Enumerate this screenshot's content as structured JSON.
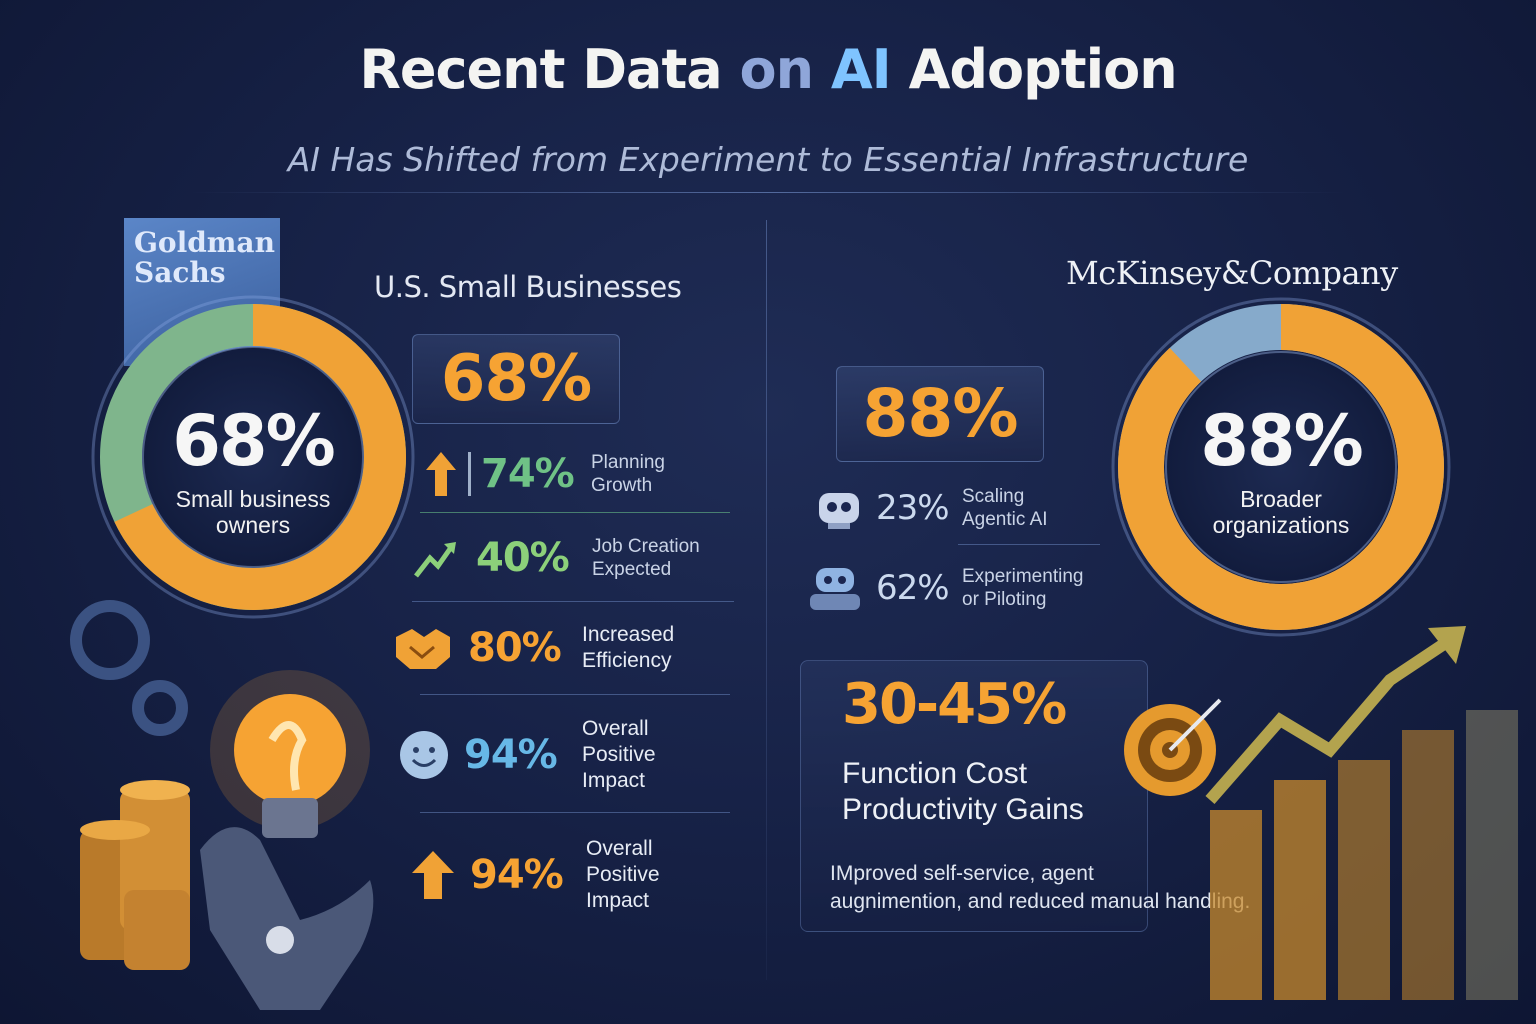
{
  "header": {
    "title_part1": "Recent Data ",
    "title_part2": "on ",
    "title_part3": "AI ",
    "title_part4": "Adoption",
    "subtitle": "AI Has Shifted from Experiment to Essential Infrastructure"
  },
  "left": {
    "logo_line1": "Goldman",
    "logo_line2": "Sachs",
    "section_title": "U.S. Small Businesses",
    "donut": {
      "value": "68%",
      "label_line1": "Small business",
      "label_line2": "owners",
      "fill_fraction": 0.68
    },
    "highlight_value": "68%",
    "stats": [
      {
        "value": "74%",
        "label_line1": "Planning",
        "label_line2": "Growth",
        "icon": "arrow-up-icon",
        "color": "#6fc286"
      },
      {
        "value": "40%",
        "label_line1": "Job Creation",
        "label_line2": "Expected",
        "icon": "growth-arrow-icon",
        "color": "#8cd07a"
      },
      {
        "value": "80%",
        "label_line1": "Increased",
        "label_line2": "Efficiency",
        "icon": "handshake-icon",
        "color": "#f6a333"
      },
      {
        "value": "94%",
        "label_line1": "Overall",
        "label_line2": "Positive",
        "label_line3": "Impact",
        "icon": "smiley-icon",
        "color": "#67b8e6"
      },
      {
        "value": "94%",
        "label_line1": "Overall",
        "label_line2": "Positive",
        "label_line3": "Impact",
        "icon": "arrow-up-icon",
        "color": "#f6a333"
      }
    ]
  },
  "right": {
    "logo": "McKinsey&Company",
    "highlight_value": "88%",
    "stats": [
      {
        "value": "23%",
        "label_line1": "Scaling",
        "label_line2": "Agentic AI",
        "icon": "robot-icon"
      },
      {
        "value": "62%",
        "label_line1": "Experimenting",
        "label_line2": "or Piloting",
        "icon": "robot-icon"
      }
    ],
    "donut": {
      "value": "88%",
      "label_line1": "Broader",
      "label_line2": "organizations",
      "fill_fraction": 0.88
    },
    "range_value": "30-45%",
    "range_label_line1": "Function Cost",
    "range_label_line2": "Productivity Gains",
    "description_line1": "IMproved self-service, agent",
    "description_line2": "augnimention, and reduced manual handling."
  },
  "colors": {
    "accent_orange": "#f6a333",
    "accent_green": "#8cd07a",
    "accent_blue": "#67b8e6",
    "background": "#172247"
  }
}
